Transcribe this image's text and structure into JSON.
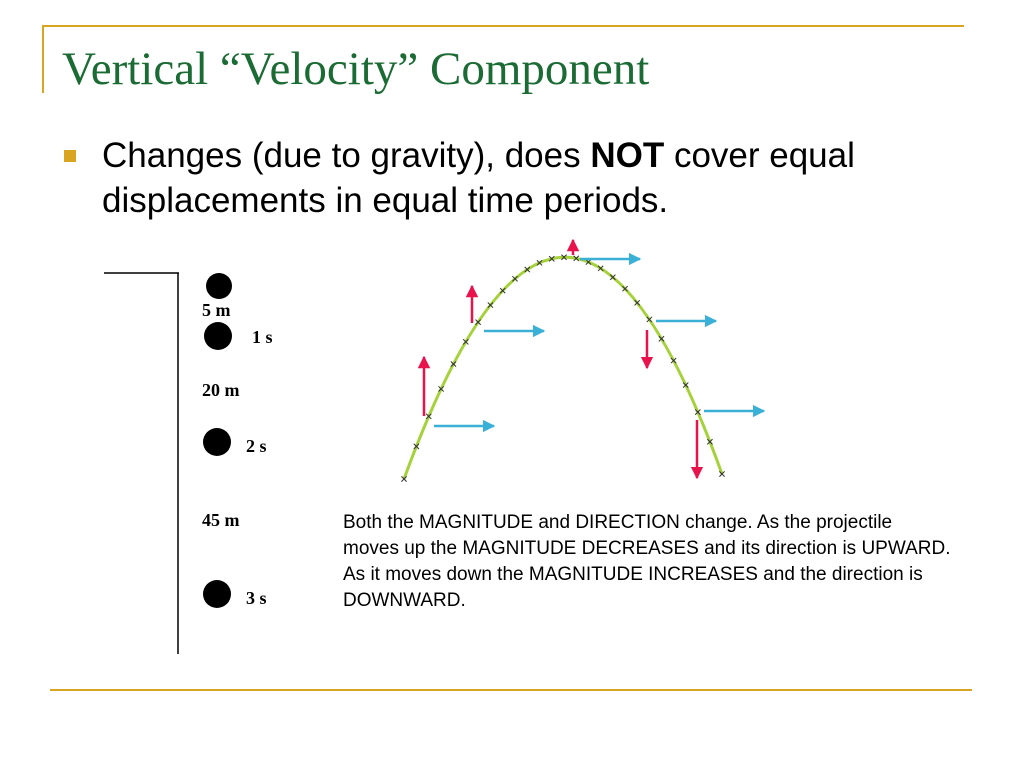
{
  "slide": {
    "title": "Vertical “Velocity” Component",
    "bullet": {
      "before": "Changes (due to gravity), does ",
      "emphasis": "NOT",
      "after": " cover equal displacements in equal time periods."
    },
    "caption": "Both the MAGNITUDE and DIRECTION change. As the projectile moves up the MAGNITUDE DECREASES and its direction is UPWARD. As it moves down the MAGNITUDE INCREASES and the direction is DOWNWARD."
  },
  "drop_figure": {
    "distance_labels": [
      "5 m",
      "20 m",
      "45 m"
    ],
    "time_labels": [
      "1 s",
      "2 s",
      "3 s"
    ]
  },
  "colors": {
    "title": "#1b6b35",
    "accent": "#d9a521",
    "path": "#a5d23a",
    "horizontal_arrow": "#3bb0d6",
    "vertical_arrow": "#e8124c"
  }
}
